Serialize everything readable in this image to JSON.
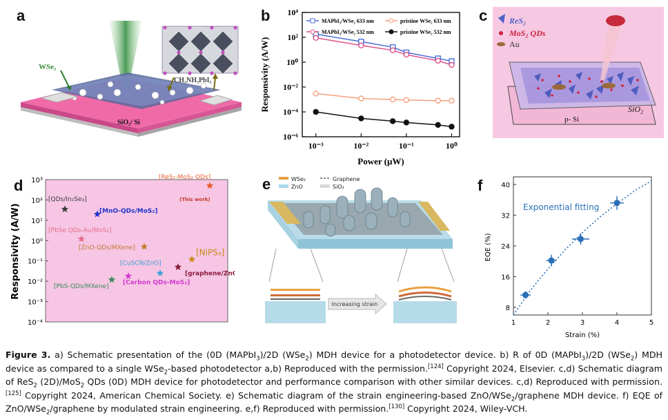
{
  "panels": {
    "a": {
      "letter": "a",
      "labels": {
        "wse2": "WSe₂",
        "perovskite": "CH₃NH₃PbI₃",
        "substrate": "SiO₂/ Si"
      }
    },
    "b": {
      "letter": "b",
      "legend": [
        {
          "name": "MAPbI₃/WSe₂ 633 nm",
          "color": "#4a6fd8",
          "marker": "square"
        },
        {
          "name": "pristine WSe₂ 633 nm",
          "color": "#f4a07c",
          "marker": "circle"
        },
        {
          "name": "MAPbI₃/WSe₂ 532 nm",
          "color": "#e0508a",
          "marker": "circle"
        },
        {
          "name": "pristine WSe₂ 532 nm",
          "color": "#111111",
          "marker": "circle"
        }
      ],
      "ylabel": "Responsivity (A/W)",
      "xlabel": "Power (μW)",
      "yticks": [
        "10⁴",
        "10²",
        "10⁰",
        "10⁻²",
        "10⁻⁴",
        "10⁻⁶"
      ],
      "xticks": [
        "10⁻³",
        "10⁻²",
        "10⁻¹",
        "10⁰"
      ]
    },
    "c": {
      "letter": "c",
      "legend": [
        {
          "text": "ReS₂",
          "color": "#4f63c7"
        },
        {
          "text": "MoS₂ QDs",
          "color": "#d0213a"
        },
        {
          "text": "Au",
          "color": "#333333"
        }
      ],
      "labels": {
        "sio2": "SiO₂",
        "psi": "p- Si"
      }
    },
    "d": {
      "letter": "d",
      "ylabel": "Responsivity (A/W)",
      "yticks": [
        "10³",
        "10²",
        "10¹",
        "10⁰",
        "10⁻¹",
        "10⁻²",
        "10⁻³",
        "10⁻⁴"
      ],
      "background": "#f6c6e4",
      "points": [
        {
          "label": "[QDs/In₂Se₃]",
          "color": "#3b3b3b"
        },
        {
          "label": "[MnO-QDs/MoS₂]",
          "color": "#2233cc"
        },
        {
          "label": "[PbSe QDs-Au/MoS₂]",
          "color": "#e86b8a"
        },
        {
          "label": "[ZnO-QDs/MXene]",
          "color": "#c07a2a"
        },
        {
          "label": "[NiPS₃]",
          "color": "#c88a1a"
        },
        {
          "label": "[ReS₂-MoS₂ QDs]",
          "color": "#e85a30"
        },
        {
          "label": "(This work)",
          "color": "#c23a2a"
        },
        {
          "label": "[CuSCN/ZnO]",
          "color": "#3aa0d8"
        },
        {
          "label": "[graphene/ZnO]",
          "color": "#8a1a3a"
        },
        {
          "label": "[Carbon QDs-MoS₂]",
          "color": "#d33ad0"
        },
        {
          "label": "[PbS-QDs/MXene]",
          "color": "#3a8a5a"
        }
      ]
    },
    "e": {
      "letter": "e",
      "legend": [
        "WSe₂",
        "Graphene",
        "ZnO",
        "SiO₂"
      ],
      "arrow_text": "Increasing strain"
    },
    "f": {
      "letter": "f",
      "annotation": "Exponential fitting",
      "ylabel": "EQE (%)",
      "xlabel": "Strain (%)",
      "yticks": [
        "8",
        "16",
        "24",
        "32",
        "40"
      ],
      "xticks": [
        "1",
        "2",
        "3",
        "4",
        "5"
      ],
      "color": "#2a6fb8"
    }
  },
  "chart_data": [
    {
      "type": "line",
      "panel": "b",
      "xlabel": "Power (μW)",
      "ylabel": "Responsivity (A/W)",
      "log_x": true,
      "log_y": true,
      "xlim": [
        0.0005,
        1.5
      ],
      "ylim": [
        1e-06,
        10000
      ],
      "x": [
        0.001,
        0.01,
        0.05,
        0.1,
        0.5,
        1.0
      ],
      "series": [
        {
          "name": "MAPbI₃/WSe₂ 633 nm",
          "values": [
            180,
            45,
            16,
            6,
            2,
            1.2
          ]
        },
        {
          "name": "pristine WSe₂ 633 nm",
          "values": [
            0.003,
            0.0012,
            0.001,
            0.0009,
            0.0008,
            0.0008
          ]
        },
        {
          "name": "MAPbI₃/WSe₂ 532 nm",
          "values": [
            90,
            22,
            9,
            4,
            1.3,
            0.6
          ]
        },
        {
          "name": "pristine WSe₂ 532 nm",
          "values": [
            0.0001,
            3e-05,
            1.8e-05,
            1.4e-05,
            9e-06,
            6.5e-06
          ]
        }
      ]
    },
    {
      "type": "scatter",
      "panel": "d",
      "ylabel": "Responsivity (A/W)",
      "log_y": true,
      "ylim": [
        0.0001,
        1000
      ],
      "points": [
        {
          "label": "[QDs/In₂Se₃]",
          "y": 35
        },
        {
          "label": "[MnO-QDs/MoS₂]",
          "y": 20
        },
        {
          "label": "[PbSe QDs-Au/MoS₂]",
          "y": 1.2
        },
        {
          "label": "[ZnO-QDs/MXene]",
          "y": 0.5
        },
        {
          "label": "[NiPS₃]",
          "y": 0.12
        },
        {
          "label": "[ReS₂-MoS₂ QDs]",
          "y": 500
        },
        {
          "label": "[CuSCN/ZnO]",
          "y": 0.025
        },
        {
          "label": "[graphene/ZnO]",
          "y": 0.05
        },
        {
          "label": "[Carbon QDs-MoS₂]",
          "y": 0.018
        },
        {
          "label": "[PbS-QDs/MXene]",
          "y": 0.012
        }
      ]
    },
    {
      "type": "scatter",
      "panel": "f",
      "xlabel": "Strain (%)",
      "ylabel": "EQE (%)",
      "xlim": [
        1,
        5
      ],
      "ylim": [
        6,
        42
      ],
      "series": [
        {
          "name": "data",
          "x": [
            1.35,
            2.1,
            2.95,
            4.0
          ],
          "y": [
            11.2,
            20.2,
            25.8,
            35.2
          ],
          "xerr": [
            0.15,
            0.15,
            0.25,
            0.2
          ],
          "yerr": [
            1.0,
            1.5,
            1.5,
            1.8
          ]
        },
        {
          "name": "Exponential fitting",
          "x": [
            1.0,
            1.5,
            2.0,
            2.5,
            3.0,
            3.5,
            4.0,
            4.5,
            5.0
          ],
          "y": [
            6.0,
            12.5,
            18.0,
            23.0,
            27.5,
            31.5,
            35.0,
            38.3,
            41.0
          ]
        }
      ]
    }
  ],
  "caption": {
    "label": "Figure 3.",
    "segments": [
      {
        "t": " a) Schematic presentation of the (0D (MAPbI"
      },
      {
        "sub": "3"
      },
      {
        "t": ")/2D (WSe"
      },
      {
        "sub": "2"
      },
      {
        "t": ") MDH device for a photodetector device. b) R of 0D (MAPbI"
      },
      {
        "sub": "3"
      },
      {
        "t": ")/2D (WSe"
      },
      {
        "sub": "2"
      },
      {
        "t": ") MDH device as compared to a single WSe"
      },
      {
        "sub": "2"
      },
      {
        "t": "-based photodetector a,b) Reproduced with the permission."
      },
      {
        "sup": "[124]"
      },
      {
        "t": " Copyright 2024, Elsevier. c,d) Schematic diagram of ReS"
      },
      {
        "sub": "2"
      },
      {
        "t": " (2D)/MoS"
      },
      {
        "sub": "2"
      },
      {
        "t": " QDs (0D) MDH device for photodetector and performance comparison with other similar devices. c,d) Reproduced with permission."
      },
      {
        "sup": "[125]"
      },
      {
        "t": " Copyright 2024, American Chemical Society. e) Schematic diagram of the strain engineering-based ZnO/WSe"
      },
      {
        "sub": "2"
      },
      {
        "t": "/graphene MDH device. f) EQE of ZnO/WSe"
      },
      {
        "sub": "2"
      },
      {
        "t": "/graphene by modulated strain engineering. e,f) Reproduced with permission."
      },
      {
        "sup": "[130]"
      },
      {
        "t": " Copyright 2024, Wiley-VCH."
      }
    ]
  }
}
